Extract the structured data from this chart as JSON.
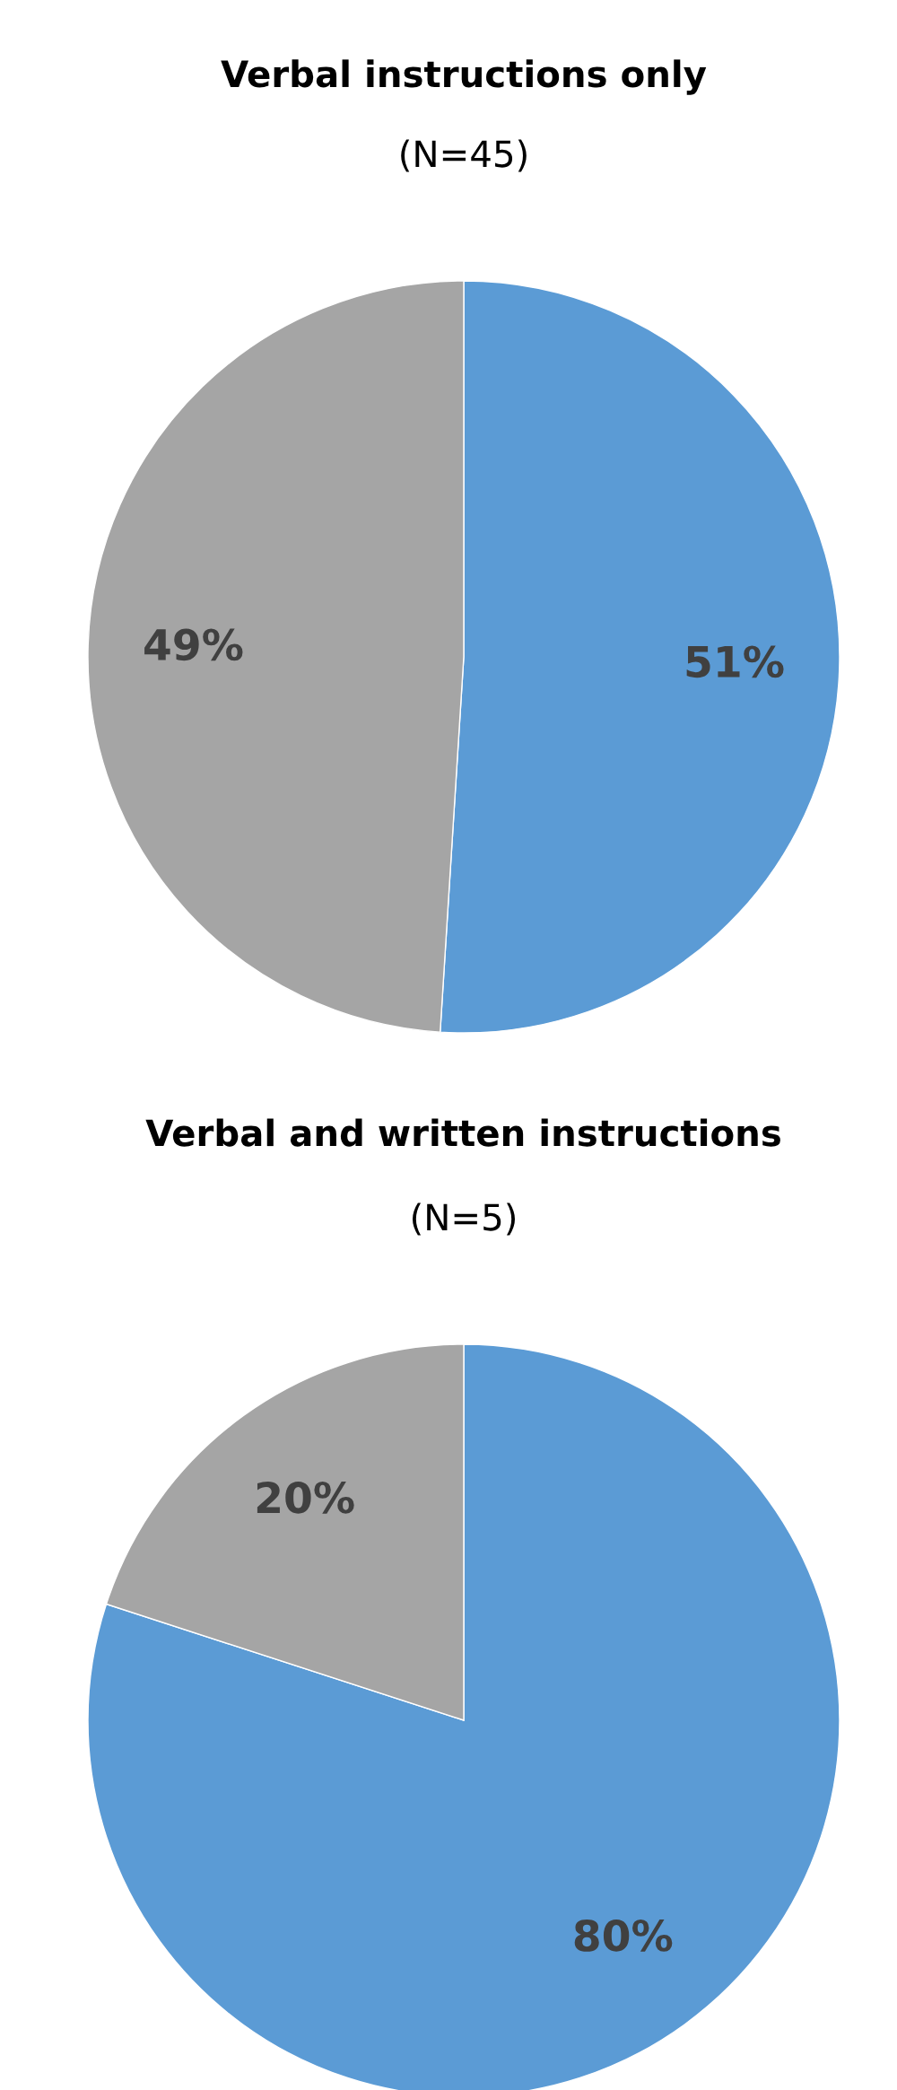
{
  "chart_data": [
    {
      "type": "pie",
      "title": "Verbal instructions only",
      "subtitle": "(N=45)",
      "categories": [
        null,
        null
      ],
      "values": [
        51,
        49
      ],
      "colors": [
        "#5b9bd5",
        "#a5a5a5"
      ],
      "value_labels": [
        "51%",
        "49%"
      ],
      "legend": false
    },
    {
      "type": "pie",
      "title": "Verbal and written instructions",
      "subtitle": "(N=5)",
      "categories": [
        null,
        null
      ],
      "values": [
        80,
        20
      ],
      "colors": [
        "#5b9bd5",
        "#a5a5a5"
      ],
      "value_labels": [
        "80%",
        "20%"
      ],
      "legend": false
    }
  ]
}
